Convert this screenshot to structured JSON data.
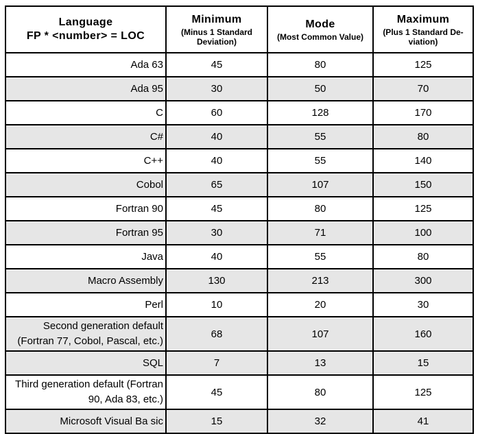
{
  "chart_data": {
    "type": "table",
    "header": {
      "language": {
        "title": "Language",
        "formula": "FP * <number> = LOC"
      },
      "minimum": {
        "title": "Minimum",
        "subtitle": "(Minus 1 Standard\nDeviation)"
      },
      "mode": {
        "title": "Mode",
        "subtitle": "(Most Common Value)"
      },
      "maximum": {
        "title": "Maximum",
        "subtitle": "(Plus 1 Standard De-\nviation)"
      }
    },
    "rows": [
      {
        "language": "Ada 63",
        "minimum": 45,
        "mode": 80,
        "maximum": 125,
        "shaded": false
      },
      {
        "language": "Ada 95",
        "minimum": 30,
        "mode": 50,
        "maximum": 70,
        "shaded": true
      },
      {
        "language": "C",
        "minimum": 60,
        "mode": 128,
        "maximum": 170,
        "shaded": false
      },
      {
        "language": "C#",
        "minimum": 40,
        "mode": 55,
        "maximum": 80,
        "shaded": true
      },
      {
        "language": "C++",
        "minimum": 40,
        "mode": 55,
        "maximum": 140,
        "shaded": false
      },
      {
        "language": "Cobol",
        "minimum": 65,
        "mode": 107,
        "maximum": 150,
        "shaded": true
      },
      {
        "language": "Fortran 90",
        "minimum": 45,
        "mode": 80,
        "maximum": 125,
        "shaded": false
      },
      {
        "language": "Fortran 95",
        "minimum": 30,
        "mode": 71,
        "maximum": 100,
        "shaded": true
      },
      {
        "language": "Java",
        "minimum": 40,
        "mode": 55,
        "maximum": 80,
        "shaded": false
      },
      {
        "language": "Macro Assembly",
        "minimum": 130,
        "mode": 213,
        "maximum": 300,
        "shaded": true
      },
      {
        "language": "Perl",
        "minimum": 10,
        "mode": 20,
        "maximum": 30,
        "shaded": false
      },
      {
        "language": "Second generation default (Fortran 77, Cobol, Pascal, etc.)",
        "minimum": 68,
        "mode": 107,
        "maximum": 160,
        "shaded": true
      },
      {
        "language": "SQL",
        "minimum": 7,
        "mode": 13,
        "maximum": 15,
        "shaded": true
      },
      {
        "language": "Third generation default (Fortran 90, Ada 83, etc.)",
        "minimum": 45,
        "mode": 80,
        "maximum": 125,
        "shaded": false
      },
      {
        "language": "Microsoft Visual Ba sic",
        "minimum": 15,
        "mode": 32,
        "maximum": 41,
        "shaded": true
      }
    ],
    "layout": {
      "legend": "none",
      "grid": "all-cell-borders",
      "column_alignments": [
        "right",
        "center",
        "center",
        "center"
      ]
    },
    "colors": {
      "shaded_row_bg": "#e6e6e6",
      "row_bg": "#ffffff",
      "border": "#000000",
      "text": "#000000"
    }
  }
}
